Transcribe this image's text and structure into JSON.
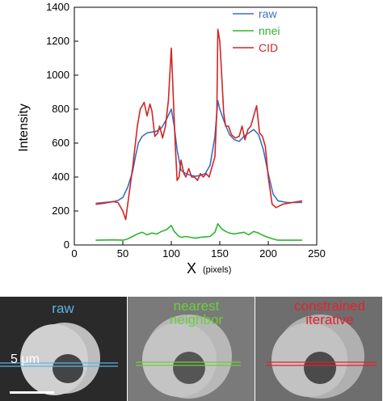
{
  "chart_data": {
    "type": "line",
    "xlabel": "X",
    "xlabel_unit": "(pixels)",
    "ylabel": "Intensity",
    "xlim": [
      0,
      250
    ],
    "ylim": [
      0,
      1400
    ],
    "xticks": [
      0,
      50,
      100,
      150,
      200,
      250
    ],
    "yticks": [
      0,
      200,
      400,
      600,
      800,
      1000,
      1200,
      1400
    ],
    "grid": false,
    "legend_position": "top-right",
    "series": [
      {
        "name": "raw",
        "color": "#3a6fc4",
        "x": [
          22,
          30,
          40,
          45,
          50,
          55,
          60,
          63,
          66,
          70,
          75,
          80,
          85,
          90,
          95,
          100,
          103,
          106,
          110,
          115,
          120,
          125,
          130,
          135,
          140,
          145,
          148,
          150,
          155,
          160,
          165,
          170,
          175,
          180,
          185,
          190,
          195,
          200,
          205,
          210,
          220,
          235
        ],
        "y": [
          245,
          250,
          255,
          262,
          280,
          340,
          430,
          520,
          600,
          640,
          660,
          665,
          670,
          690,
          740,
          800,
          700,
          560,
          440,
          420,
          410,
          405,
          410,
          420,
          470,
          640,
          850,
          800,
          720,
          650,
          620,
          610,
          640,
          660,
          680,
          650,
          560,
          420,
          300,
          260,
          250,
          250
        ]
      },
      {
        "name": "nnei",
        "color": "#2db52d",
        "x": [
          22,
          40,
          50,
          55,
          60,
          65,
          70,
          75,
          80,
          85,
          90,
          95,
          100,
          103,
          107,
          110,
          115,
          120,
          125,
          130,
          135,
          140,
          145,
          148,
          152,
          156,
          160,
          165,
          170,
          175,
          180,
          185,
          190,
          195,
          200,
          205,
          210,
          220,
          235
        ],
        "y": [
          28,
          30,
          28,
          35,
          50,
          65,
          75,
          60,
          70,
          65,
          80,
          90,
          115,
          80,
          55,
          45,
          50,
          45,
          40,
          45,
          48,
          50,
          75,
          125,
          95,
          80,
          70,
          65,
          70,
          75,
          60,
          80,
          70,
          55,
          45,
          35,
          28,
          28,
          28
        ]
      },
      {
        "name": "CID",
        "color": "#d22525",
        "x": [
          22,
          30,
          40,
          45,
          50,
          53,
          56,
          60,
          65,
          68,
          72,
          75,
          78,
          80,
          83,
          86,
          88,
          91,
          94,
          97,
          100,
          102,
          104,
          106,
          108,
          110,
          113,
          115,
          118,
          121,
          124,
          127,
          130,
          133,
          136,
          139,
          142,
          145,
          147,
          148,
          150,
          152,
          154,
          156,
          159,
          162,
          166,
          170,
          173,
          176,
          179,
          182,
          185,
          188,
          191,
          194,
          197,
          200,
          204,
          208,
          215,
          225,
          235
        ],
        "y": [
          240,
          245,
          255,
          250,
          200,
          150,
          280,
          450,
          700,
          800,
          840,
          760,
          830,
          790,
          640,
          660,
          700,
          630,
          700,
          850,
          1160,
          880,
          600,
          380,
          400,
          500,
          420,
          400,
          450,
          400,
          400,
          380,
          420,
          400,
          420,
          400,
          460,
          520,
          800,
          1270,
          1200,
          1000,
          780,
          700,
          700,
          650,
          630,
          640,
          700,
          620,
          680,
          700,
          760,
          820,
          660,
          640,
          580,
          400,
          240,
          220,
          240,
          250,
          260
        ]
      }
    ]
  },
  "panels": [
    {
      "label": "raw",
      "color": "#5ab4e6"
    },
    {
      "label": "nearest\nneighbor",
      "color": "#6ccf3c"
    },
    {
      "label": "constrained\niterative",
      "color": "#e2232a"
    }
  ],
  "scale_bar": {
    "label": "5 μm"
  }
}
